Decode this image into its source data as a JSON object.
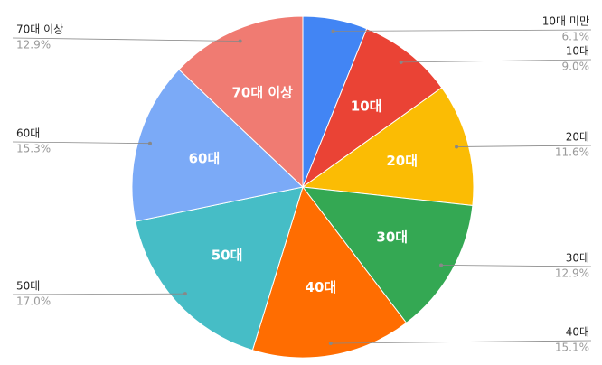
{
  "chart_data": {
    "type": "pie",
    "categories": [
      "10대 미만",
      "10대",
      "20대",
      "30대",
      "40대",
      "50대",
      "60대",
      "70대 이상"
    ],
    "values": [
      6.1,
      9.0,
      11.6,
      12.9,
      15.1,
      17.0,
      15.3,
      12.9
    ],
    "value_labels": [
      "6.1%",
      "9.0%",
      "11.6%",
      "12.9%",
      "15.1%",
      "17.0%",
      "15.3%",
      "12.9%"
    ],
    "colors": [
      "#4285f4",
      "#ea4335",
      "#fbbc04",
      "#34a853",
      "#ff6d01",
      "#46bdc6",
      "#7baaf7",
      "#f07b72"
    ]
  }
}
